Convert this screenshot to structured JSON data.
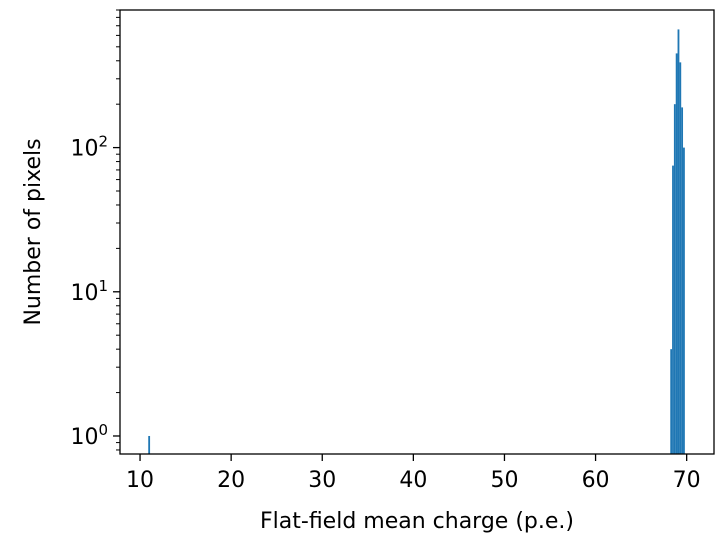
{
  "chart_data": {
    "type": "bar",
    "title": "",
    "xlabel": "Flat-field mean charge (p.e.)",
    "ylabel": "Number of pixels",
    "yscale": "log",
    "xlim": [
      7.8,
      73.0
    ],
    "ylim": [
      0.75,
      900
    ],
    "xticks": [
      10,
      20,
      30,
      40,
      50,
      60,
      70
    ],
    "xtick_labels": [
      "10",
      "20",
      "30",
      "40",
      "50",
      "60",
      "70"
    ],
    "yticks": [
      1,
      10,
      100
    ],
    "ytick_labels": [
      {
        "base": "10",
        "exp": "0"
      },
      {
        "base": "10",
        "exp": "1"
      },
      {
        "base": "10",
        "exp": "2"
      }
    ],
    "grid": false,
    "bar_color": "#1f77b4",
    "bin_width": 0.2,
    "bins": [
      {
        "x": 11.0,
        "count": 1
      },
      {
        "x": 68.3,
        "count": 4
      },
      {
        "x": 68.5,
        "count": 75
      },
      {
        "x": 68.7,
        "count": 200
      },
      {
        "x": 68.9,
        "count": 450
      },
      {
        "x": 69.1,
        "count": 660
      },
      {
        "x": 69.3,
        "count": 390
      },
      {
        "x": 69.5,
        "count": 190
      },
      {
        "x": 69.7,
        "count": 100
      },
      {
        "x": 69.9,
        "count": 0
      },
      {
        "x": 70.1,
        "count": 0
      }
    ]
  }
}
